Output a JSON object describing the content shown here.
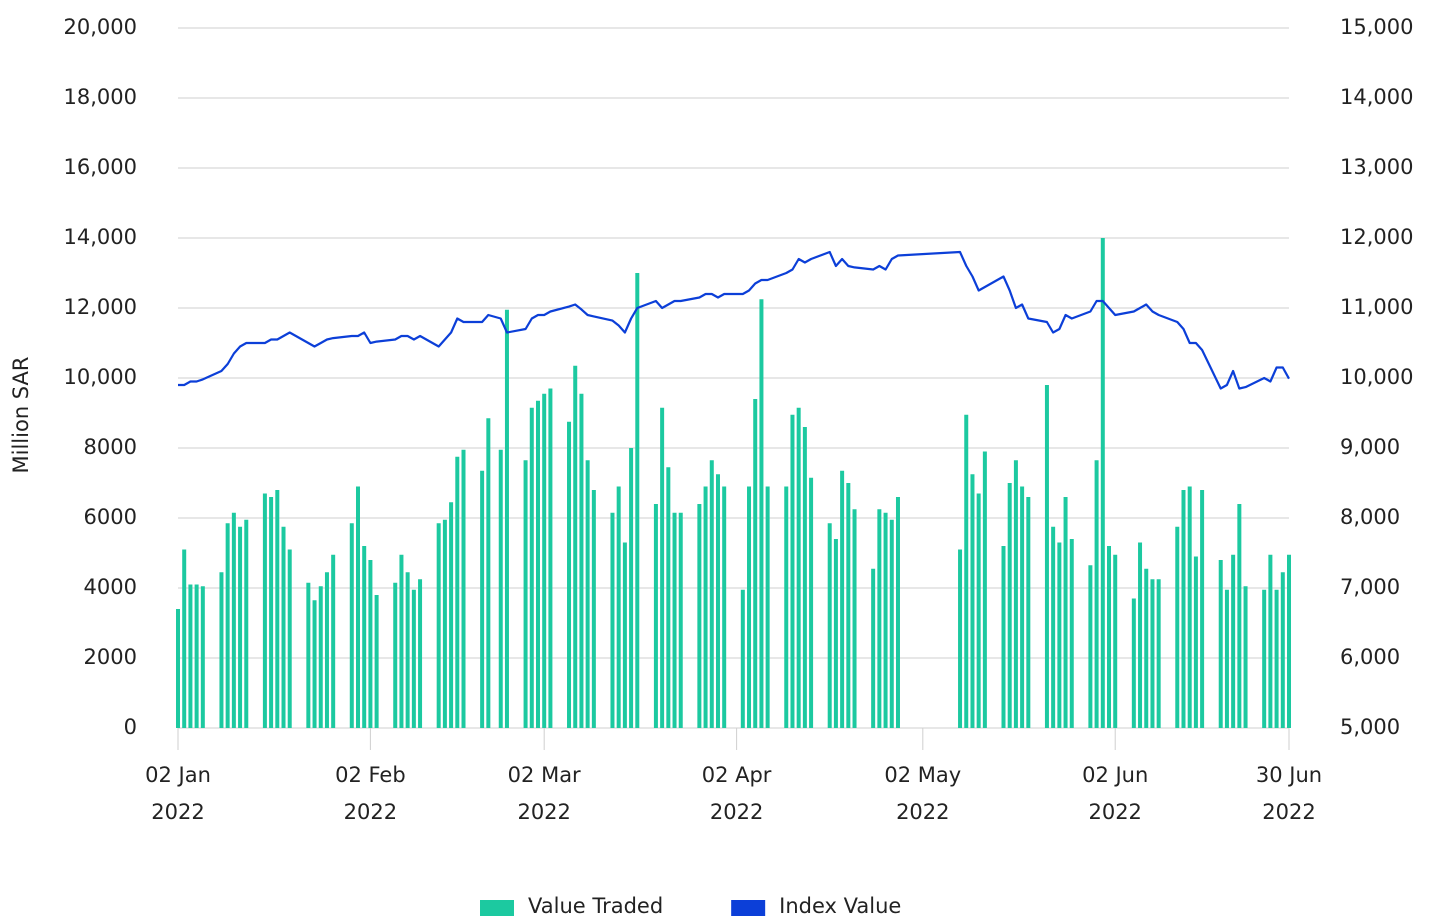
{
  "chart_data": {
    "type": "bar",
    "y_label": "Million SAR",
    "xlim": [
      "2022-01-02",
      "2022-06-30"
    ],
    "xticks": [
      {
        "value": "2022-01-02",
        "label": "02 Jan 2022"
      },
      {
        "value": "2022-02-02",
        "label": "02 Feb 2022"
      },
      {
        "value": "2022-03-02",
        "label": "02 Mar 2022"
      },
      {
        "value": "2022-04-02",
        "label": "02 Apr 2022"
      },
      {
        "value": "2022-05-02",
        "label": "02 May 2022"
      },
      {
        "value": "2022-06-02",
        "label": "02 Jun 2022"
      },
      {
        "value": "2022-06-30",
        "label": "30 Jun 2022"
      }
    ],
    "ylim": [
      0,
      20000
    ],
    "yticks": [
      0,
      2000,
      4000,
      6000,
      8000,
      {
        "value": 10000,
        "label": "10,000"
      },
      {
        "value": 12000,
        "label": "12,000"
      },
      {
        "value": 14000,
        "label": "14,000"
      },
      {
        "value": 16000,
        "label": "16,000"
      },
      {
        "value": 18000,
        "label": "18,000"
      },
      {
        "value": 20000,
        "label": "20,000"
      }
    ],
    "y2lim": [
      5000,
      15000
    ],
    "y2ticks": [
      {
        "value": 5000,
        "label": "5,000"
      },
      {
        "value": 6000,
        "label": "6,000"
      },
      {
        "value": 7000,
        "label": "7,000"
      },
      {
        "value": 8000,
        "label": "8,000"
      },
      {
        "value": 9000,
        "label": "9,000"
      },
      {
        "value": 10000,
        "label": "10,000"
      },
      {
        "value": 11000,
        "label": "11,000"
      },
      {
        "value": 12000,
        "label": "12,000"
      },
      {
        "value": 13000,
        "label": "13,000"
      },
      {
        "value": 14000,
        "label": "14,000"
      },
      {
        "value": 15000,
        "label": "15,000"
      }
    ],
    "grid": true,
    "legend": "bottom",
    "x": [
      "2022-01-02",
      "2022-01-03",
      "2022-01-04",
      "2022-01-05",
      "2022-01-06",
      "2022-01-09",
      "2022-01-10",
      "2022-01-11",
      "2022-01-12",
      "2022-01-13",
      "2022-01-16",
      "2022-01-17",
      "2022-01-18",
      "2022-01-19",
      "2022-01-20",
      "2022-01-23",
      "2022-01-24",
      "2022-01-25",
      "2022-01-26",
      "2022-01-27",
      "2022-01-30",
      "2022-01-31",
      "2022-02-01",
      "2022-02-02",
      "2022-02-03",
      "2022-02-06",
      "2022-02-07",
      "2022-02-08",
      "2022-02-09",
      "2022-02-10",
      "2022-02-13",
      "2022-02-14",
      "2022-02-15",
      "2022-02-16",
      "2022-02-17",
      "2022-02-20",
      "2022-02-21",
      "2022-02-23",
      "2022-02-24",
      "2022-02-27",
      "2022-02-28",
      "2022-03-01",
      "2022-03-02",
      "2022-03-03",
      "2022-03-06",
      "2022-03-07",
      "2022-03-08",
      "2022-03-09",
      "2022-03-10",
      "2022-03-13",
      "2022-03-14",
      "2022-03-15",
      "2022-03-16",
      "2022-03-17",
      "2022-03-20",
      "2022-03-21",
      "2022-03-22",
      "2022-03-23",
      "2022-03-24",
      "2022-03-27",
      "2022-03-28",
      "2022-03-29",
      "2022-03-30",
      "2022-03-31",
      "2022-04-03",
      "2022-04-04",
      "2022-04-05",
      "2022-04-06",
      "2022-04-07",
      "2022-04-10",
      "2022-04-11",
      "2022-04-12",
      "2022-04-13",
      "2022-04-14",
      "2022-04-17",
      "2022-04-18",
      "2022-04-19",
      "2022-04-20",
      "2022-04-21",
      "2022-04-24",
      "2022-04-25",
      "2022-04-26",
      "2022-04-27",
      "2022-04-28",
      "2022-05-08",
      "2022-05-09",
      "2022-05-10",
      "2022-05-11",
      "2022-05-12",
      "2022-05-15",
      "2022-05-16",
      "2022-05-17",
      "2022-05-18",
      "2022-05-19",
      "2022-05-22",
      "2022-05-23",
      "2022-05-24",
      "2022-05-25",
      "2022-05-26",
      "2022-05-29",
      "2022-05-30",
      "2022-05-31",
      "2022-06-01",
      "2022-06-02",
      "2022-06-05",
      "2022-06-06",
      "2022-06-07",
      "2022-06-08",
      "2022-06-09",
      "2022-06-12",
      "2022-06-13",
      "2022-06-14",
      "2022-06-15",
      "2022-06-16",
      "2022-06-19",
      "2022-06-20",
      "2022-06-21",
      "2022-06-22",
      "2022-06-23",
      "2022-06-26",
      "2022-06-27",
      "2022-06-28",
      "2022-06-29",
      "2022-06-30"
    ],
    "series": [
      {
        "name": "Value Traded",
        "type": "bar",
        "color": "#1cc9a0",
        "values": [
          3400,
          5100,
          4100,
          4100,
          4050,
          4450,
          5850,
          6150,
          5750,
          5950,
          6700,
          6600,
          6800,
          5750,
          5100,
          4150,
          3650,
          4050,
          4450,
          4950,
          5850,
          6900,
          5200,
          4800,
          3800,
          4150,
          4950,
          4450,
          3950,
          4250,
          5850,
          5950,
          6450,
          7750,
          7950,
          7350,
          8850,
          7950,
          11950,
          7650,
          9150,
          9350,
          9550,
          9700,
          8750,
          10350,
          9550,
          7650,
          6800,
          6150,
          6900,
          5300,
          8000,
          13000,
          6400,
          9150,
          7450,
          6150,
          6150,
          6400,
          6900,
          7650,
          7250,
          6900,
          3950,
          6900,
          9400,
          12250,
          6900,
          6900,
          8950,
          9150,
          8600,
          7150,
          5850,
          5400,
          7350,
          7000,
          6250,
          4550,
          6250,
          6150,
          5950,
          6600,
          5100,
          8950,
          7250,
          6700,
          7900,
          5200,
          7000,
          7650,
          6900,
          6600,
          9800,
          5750,
          5300,
          6600,
          5400,
          4650,
          7650,
          14000,
          5200,
          4950,
          3700,
          5300,
          4550,
          4250,
          4250,
          5750,
          6800,
          6900,
          4900,
          6800,
          4800,
          3950,
          4950,
          6400,
          4050,
          3950,
          4950,
          3950,
          4450,
          4950
        ]
      },
      {
        "name": "Index Value",
        "type": "line",
        "axis": "y2",
        "color": "#0c3fd8",
        "values": [
          9900,
          9900,
          9950,
          9950,
          9980,
          10100,
          10200,
          10350,
          10450,
          10500,
          10500,
          10550,
          10550,
          10600,
          10650,
          10500,
          10450,
          10500,
          10550,
          10570,
          10600,
          10600,
          10650,
          10500,
          10520,
          10550,
          10600,
          10600,
          10550,
          10600,
          10450,
          10550,
          10650,
          10850,
          10800,
          10800,
          10900,
          10850,
          10650,
          10700,
          10850,
          10900,
          10900,
          10950,
          11020,
          11050,
          10980,
          10900,
          10880,
          10820,
          10750,
          10650,
          10850,
          11000,
          11100,
          11000,
          11050,
          11100,
          11100,
          11150,
          11200,
          11200,
          11150,
          11200,
          11200,
          11250,
          11350,
          11400,
          11400,
          11500,
          11550,
          11700,
          11650,
          11700,
          11800,
          11600,
          11700,
          11600,
          11580,
          11550,
          11600,
          11550,
          11700,
          11750,
          11800,
          11600,
          11450,
          11250,
          11300,
          11450,
          11250,
          11000,
          11050,
          10850,
          10800,
          10650,
          10700,
          10900,
          10850,
          10950,
          11100,
          11100,
          11000,
          10900,
          10950,
          11000,
          11050,
          10950,
          10900,
          10800,
          10700,
          10500,
          10500,
          10400,
          9850,
          9900,
          10100,
          9850,
          9870,
          10000,
          9950,
          10150,
          10150,
          9990
        ]
      }
    ]
  }
}
